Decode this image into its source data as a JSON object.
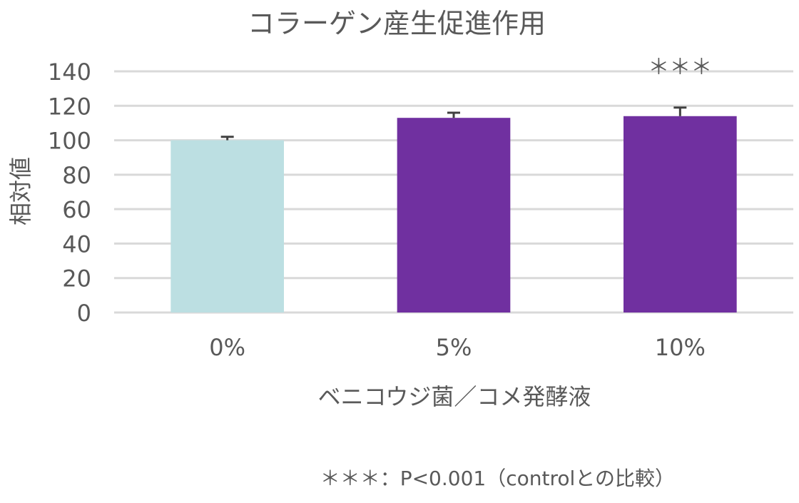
{
  "chart_data": {
    "type": "bar",
    "title": "コラーゲン産生促進作用",
    "xlabel": "ベニコウジ菌／コメ発酵液",
    "ylabel": "相対値",
    "categories": [
      "0%",
      "5%",
      "10%"
    ],
    "values": [
      100,
      113,
      114
    ],
    "error_bars": [
      2,
      3,
      5
    ],
    "bar_colors": [
      "#BCDFE2",
      "#7030A0",
      "#7030A0"
    ],
    "significance": [
      "",
      "",
      "＊＊＊"
    ],
    "ylim": [
      0,
      140
    ],
    "yticks": [
      0,
      20,
      40,
      60,
      80,
      100,
      120,
      140
    ],
    "grid": true,
    "footnote": "＊＊＊：P<0.001（controlとの比較）",
    "colors": {
      "grid": "#D9D9D9",
      "text": "#595959",
      "error_bar": "#404040"
    }
  }
}
